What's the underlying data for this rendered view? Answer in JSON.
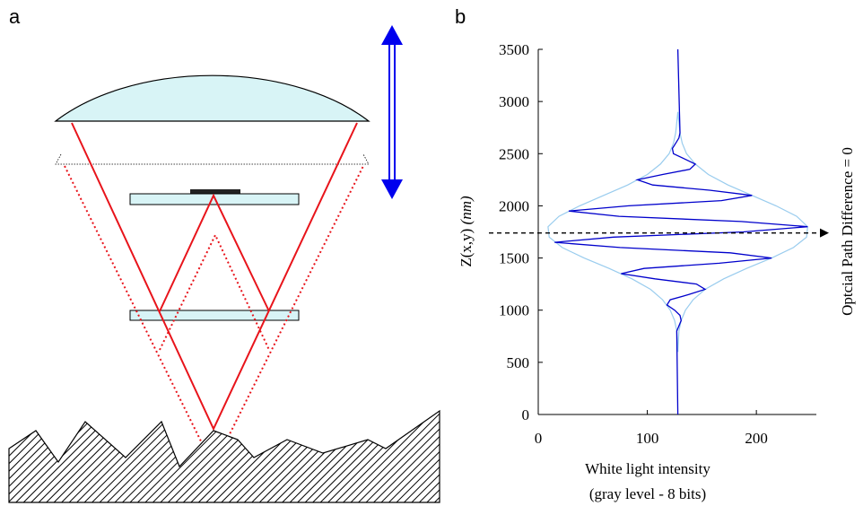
{
  "panel_labels": {
    "a": "a",
    "b": "b"
  },
  "chart_data": {
    "type": "line",
    "ylabel": "Z(x,y)",
    "ylabel_unit": "(nm)",
    "xlabel": [
      "White light intensity",
      "(gray level - 8 bits)"
    ],
    "annotation": {
      "text": "Optcial Path Difference = 0",
      "y": 1740
    },
    "xlim": [
      0,
      255
    ],
    "xticks": [
      0,
      100,
      200
    ],
    "ylim": [
      0,
      3500
    ],
    "yticks": [
      0,
      500,
      1000,
      1500,
      2000,
      2500,
      3000,
      3500
    ],
    "series": [
      {
        "color": "#99ccee",
        "x": [
          128,
          129,
          131,
          135,
          142,
          153,
          170,
          191,
          214,
          234,
          246,
          247,
          237,
          218,
          196,
          174,
          156,
          144,
          136,
          132,
          130,
          128
        ],
        "y": [
          600,
          800,
          900,
          1000,
          1100,
          1200,
          1300,
          1400,
          1500,
          1600,
          1700,
          1800,
          1900,
          2000,
          2100,
          2200,
          2300,
          2400,
          2500,
          2600,
          2700,
          2900
        ]
      },
      {
        "color": "#99ccee",
        "x": [
          128,
          127,
          125,
          121,
          114,
          103,
          86,
          65,
          42,
          22,
          10,
          9,
          19,
          38,
          60,
          82,
          100,
          112,
          120,
          124,
          126,
          128
        ],
        "y": [
          600,
          800,
          900,
          1000,
          1100,
          1200,
          1300,
          1400,
          1500,
          1600,
          1700,
          1800,
          1900,
          2000,
          2100,
          2200,
          2300,
          2400,
          2500,
          2600,
          2700,
          2900
        ]
      },
      {
        "color": "#0000cc",
        "x": [
          128,
          127,
          129,
          131,
          130,
          125,
          118,
          121,
          138,
          153,
          145,
          107,
          76,
          97,
          166,
          214,
          176,
          75,
          15,
          69,
          188,
          247,
          186,
          74,
          28,
          83,
          168,
          196,
          157,
          105,
          91,
          114,
          139,
          144,
          134,
          124,
          123,
          126,
          129,
          130,
          128
        ],
        "y": [
          0,
          800,
          850,
          900,
          950,
          1000,
          1050,
          1100,
          1150,
          1200,
          1250,
          1300,
          1350,
          1400,
          1450,
          1500,
          1550,
          1600,
          1650,
          1700,
          1750,
          1800,
          1850,
          1900,
          1950,
          2000,
          2050,
          2100,
          2150,
          2200,
          2250,
          2300,
          2350,
          2400,
          2450,
          2500,
          2550,
          2600,
          2650,
          2700,
          3500
        ]
      }
    ]
  }
}
